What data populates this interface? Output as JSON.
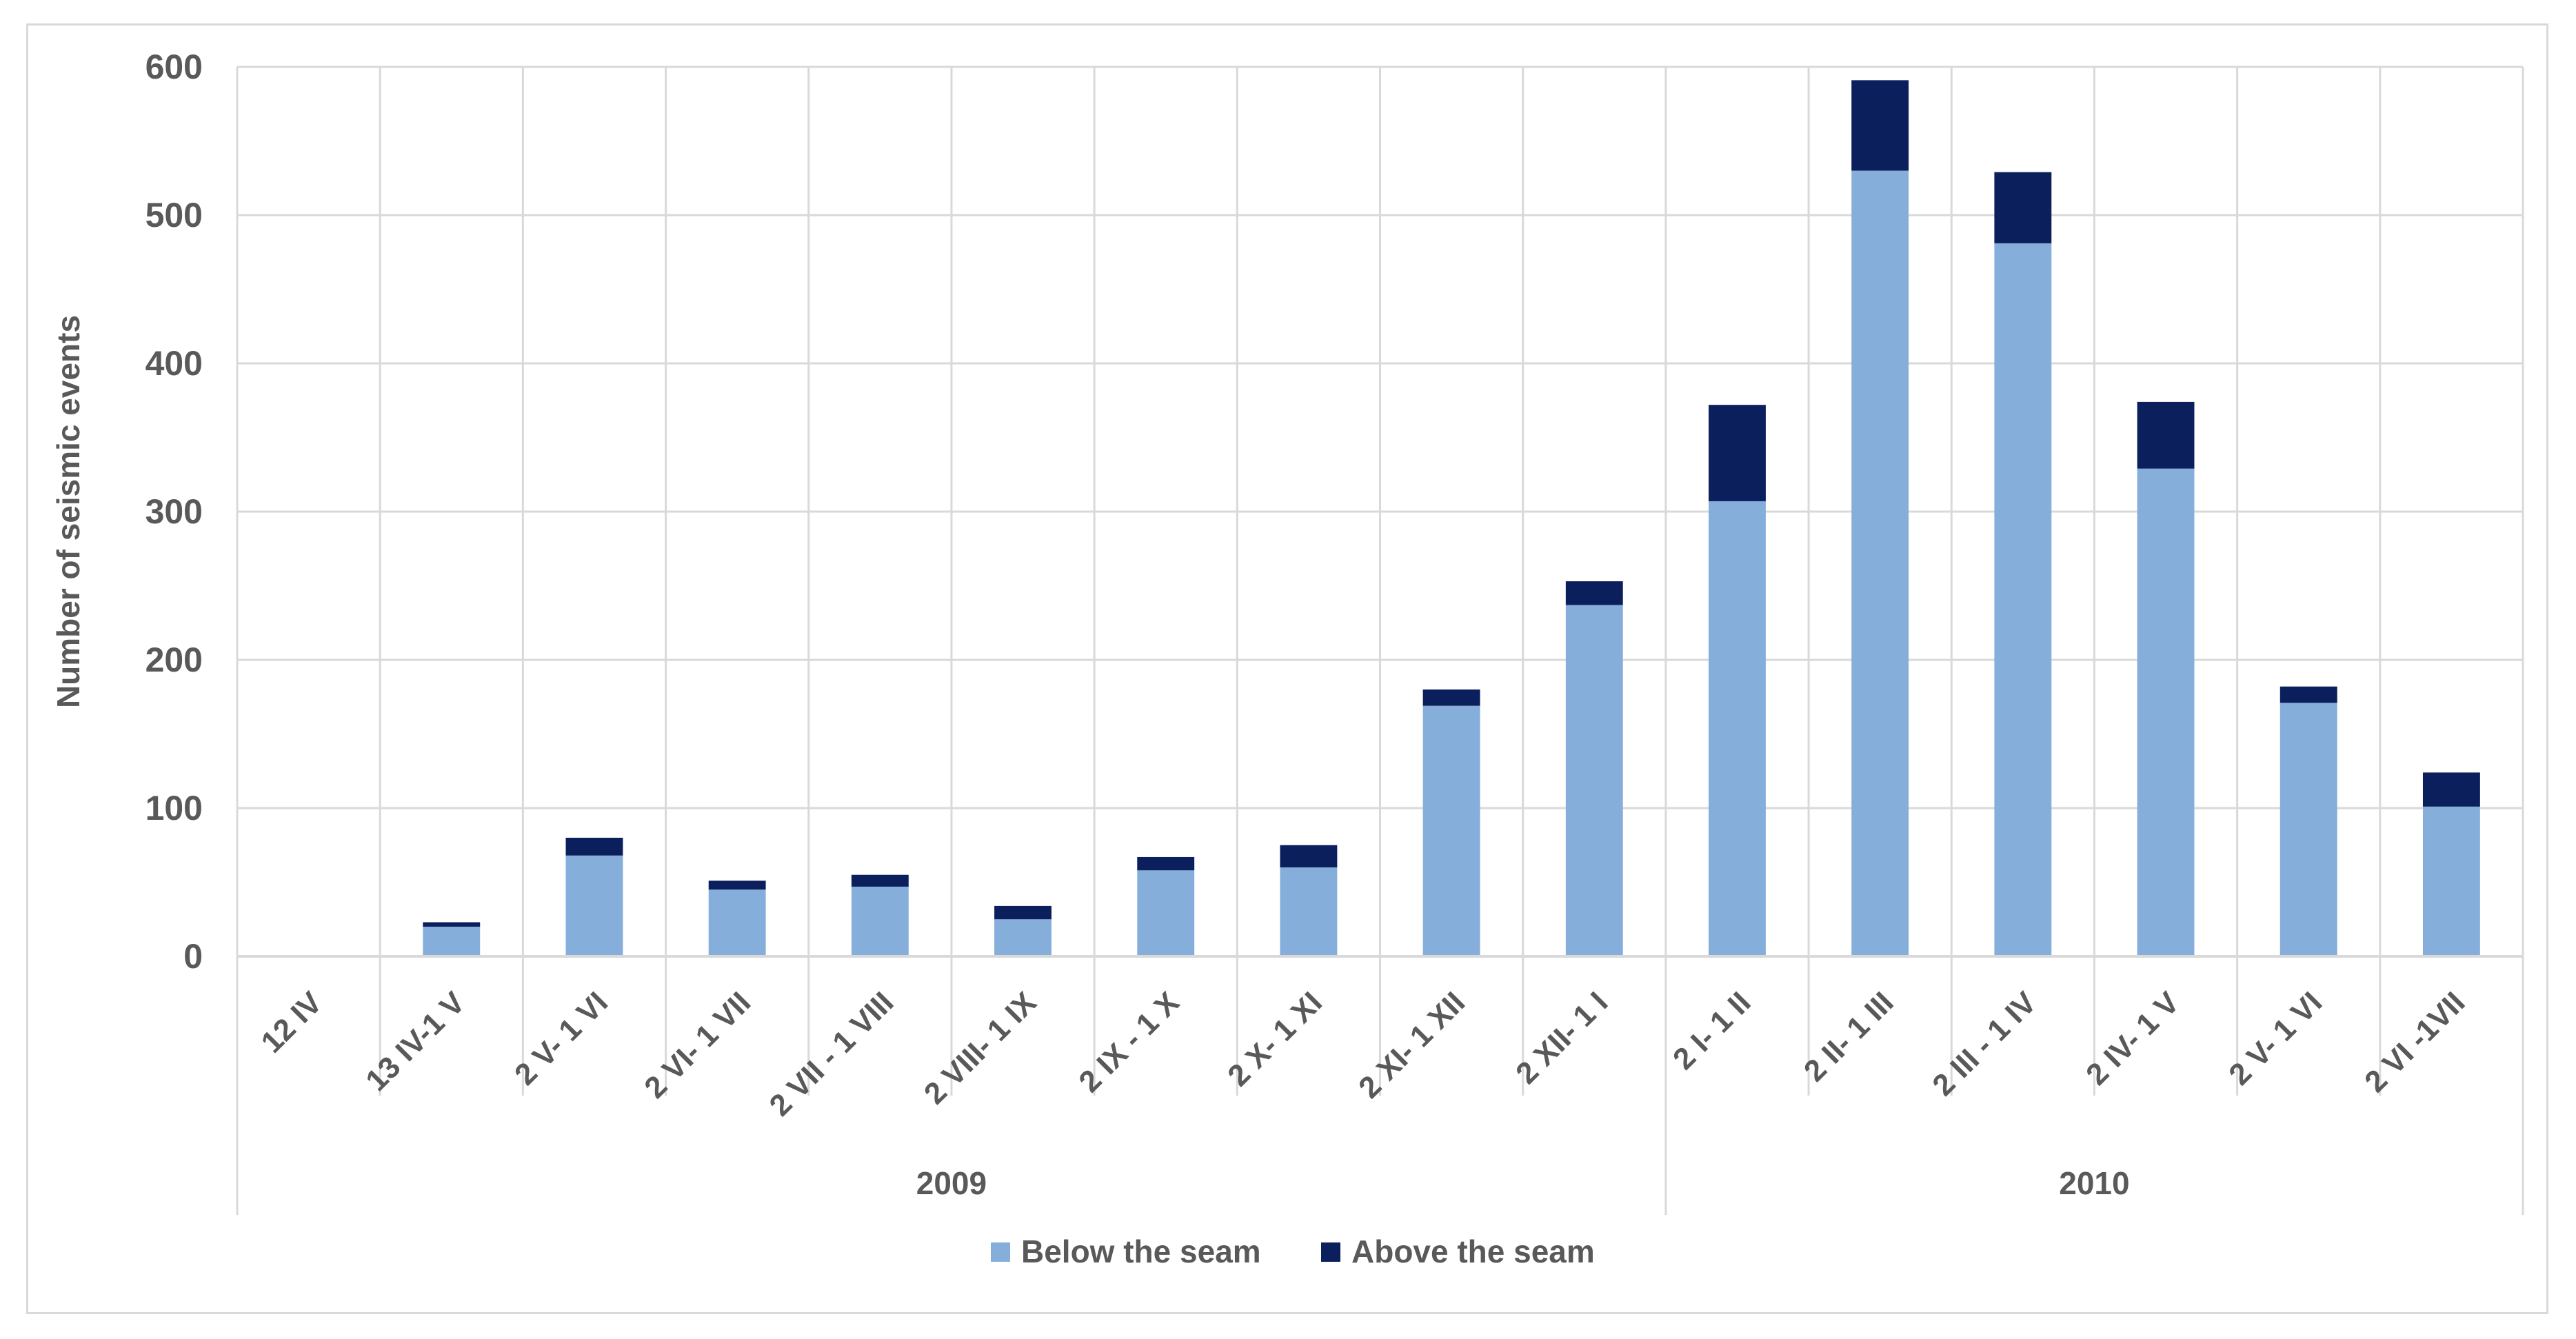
{
  "chart_data": {
    "type": "bar",
    "stacked": true,
    "ylabel": "Number of seismic events",
    "xlabel": "",
    "ylim": [
      0,
      600
    ],
    "yticks": [
      0,
      100,
      200,
      300,
      400,
      500,
      600
    ],
    "grid": true,
    "legend_position": "bottom-center",
    "categories": [
      "12 IV",
      "13 IV-1 V",
      "2 V- 1 VI",
      "2 VI- 1 VII",
      "2 VII - 1 VIII",
      "2 VIII- 1 IX",
      "2 IX - 1 X",
      "2 X- 1 XI",
      "2 XI- 1 XII",
      "2 XII- 1 I",
      "2 I- 1 II",
      "2 II- 1 III",
      "2 III - 1 IV",
      "2 IV- 1 V",
      "2 V- 1 VI",
      "2 VI -1VII"
    ],
    "groups": [
      {
        "label": "2009",
        "start": 0,
        "end": 9
      },
      {
        "label": "2010",
        "start": 10,
        "end": 15
      }
    ],
    "series": [
      {
        "name": "Below the seam",
        "color": "#85aedb",
        "values": [
          0,
          20,
          68,
          45,
          47,
          25,
          58,
          60,
          169,
          237,
          307,
          530,
          481,
          329,
          171,
          101
        ]
      },
      {
        "name": "Above the seam",
        "color": "#0a1f5c",
        "values": [
          0,
          3,
          12,
          6,
          8,
          9,
          9,
          15,
          11,
          16,
          65,
          61,
          48,
          45,
          11,
          23
        ]
      }
    ]
  }
}
